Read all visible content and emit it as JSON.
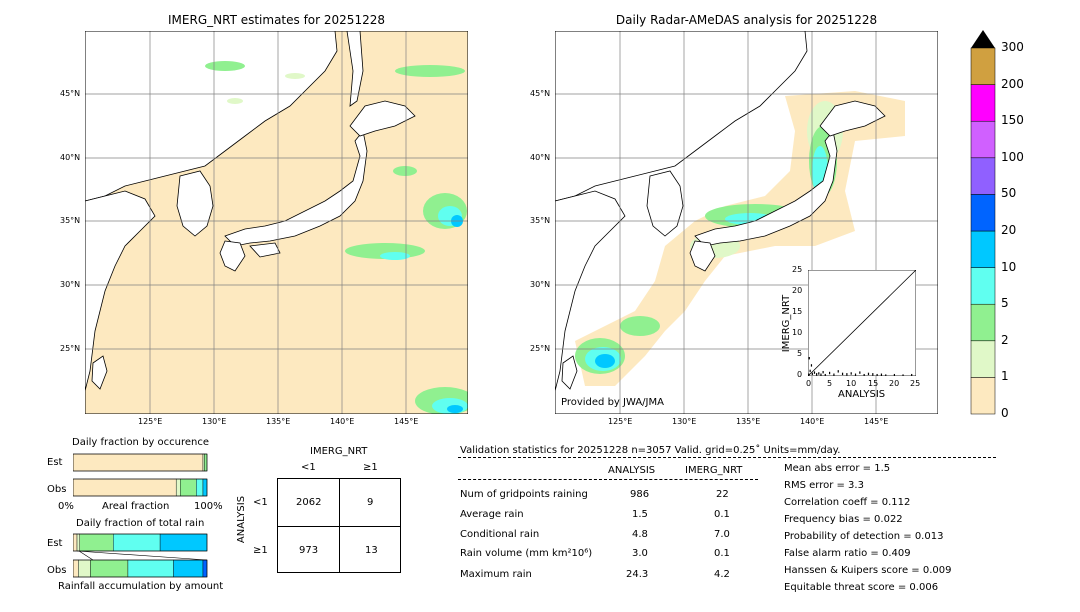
{
  "colors": {
    "land": "#ffffff",
    "sea_fill": "#fde9c0",
    "grid": "#808080",
    "legend": [
      "#fde9c0",
      "#e0f8c8",
      "#90f090",
      "#60fff0",
      "#00c8ff",
      "#0064ff",
      "#9060ff",
      "#d060ff",
      "#ff00ff",
      "#d0a040"
    ]
  },
  "maps": {
    "left_title": "IMERG_NRT estimates for 20251228",
    "right_title": "Daily Radar-AMeDAS analysis for 20251228",
    "lat_ticks": [
      "45°N",
      "40°N",
      "35°N",
      "30°N",
      "25°N"
    ],
    "lon_ticks": [
      "125°E",
      "130°E",
      "135°E",
      "140°E",
      "145°E"
    ],
    "credit": "Provided by JWA/JMA"
  },
  "colorbar": {
    "ticks": [
      "300",
      "200",
      "150",
      "100",
      "50",
      "20",
      "10",
      "5",
      "2",
      "1",
      "0"
    ]
  },
  "scatter_inset": {
    "ylabel": "IMERG_NRT",
    "xlabel": "ANALYSIS",
    "ticks": [
      "0",
      "5",
      "10",
      "15",
      "20",
      "25"
    ]
  },
  "fraction_occurrence": {
    "title": "Daily fraction by occurence",
    "row_est": "Est",
    "row_obs": "Obs",
    "axis_left": "0%",
    "axis_mid": "Areal fraction",
    "axis_right": "100%"
  },
  "fraction_rain": {
    "title": "Daily fraction of total rain",
    "row_est": "Est",
    "row_obs": "Obs",
    "axis_label": "Rainfall accumulation by amount"
  },
  "contingency": {
    "col_title": "IMERG_NRT",
    "col_lt": "<1",
    "col_ge": "≥1",
    "row_title": "ANALYSIS",
    "row_lt": "<1",
    "row_ge": "≥1",
    "cells": [
      "2062",
      "9",
      "973",
      "13"
    ]
  },
  "validation": {
    "header": "Validation statistics for 20251228  n=3057 Valid. grid=0.25˚ Units=mm/day.",
    "col_analysis": "ANALYSIS",
    "col_imerg": "IMERG_NRT",
    "rows": [
      {
        "label": "Num of gridpoints raining",
        "analysis": "986",
        "imerg": "22"
      },
      {
        "label": "Average rain",
        "analysis": "1.5",
        "imerg": "0.1"
      },
      {
        "label": "Conditional rain",
        "analysis": "4.8",
        "imerg": "7.0"
      },
      {
        "label": "Rain volume (mm km²10⁶)",
        "analysis": "3.0",
        "imerg": "0.1"
      },
      {
        "label": "Maximum rain",
        "analysis": "24.3",
        "imerg": "4.2"
      }
    ],
    "scores": [
      "Mean abs error =    1.5",
      "RMS error =    3.3",
      "Correlation coeff =  0.112",
      "Frequency bias =  0.022",
      "Probability of detection =  0.013",
      "False alarm ratio =  0.409",
      "Hanssen & Kuipers score =  0.009",
      "Equitable threat score =  0.006"
    ]
  },
  "chart_data": [
    {
      "type": "heatmap",
      "title": "IMERG_NRT estimates for 20251228",
      "xlabel": "",
      "ylabel": "",
      "x_ticks": [
        "125°E",
        "130°E",
        "135°E",
        "140°E",
        "145°E"
      ],
      "y_ticks": [
        "45°N",
        "40°N",
        "35°N",
        "30°N",
        "25°N"
      ]
    },
    {
      "type": "heatmap",
      "title": "Daily Radar-AMeDAS analysis for 20251228",
      "xlabel": "",
      "ylabel": "",
      "x_ticks": [
        "125°E",
        "130°E",
        "135°E",
        "140°E",
        "145°E"
      ],
      "y_ticks": [
        "45°N",
        "40°N",
        "35°N",
        "30°N",
        "25°N"
      ]
    },
    {
      "type": "scatter",
      "xlabel": "ANALYSIS",
      "ylabel": "IMERG_NRT",
      "xlim": [
        0,
        25
      ],
      "ylim": [
        0,
        25
      ],
      "points": [
        [
          0.2,
          0.3
        ],
        [
          0.5,
          1.2
        ],
        [
          1,
          0.5
        ],
        [
          1.5,
          0.8
        ],
        [
          2,
          0.4
        ],
        [
          2.5,
          0.6
        ],
        [
          3,
          0.3
        ],
        [
          3.5,
          0.9
        ],
        [
          4,
          0.2
        ],
        [
          5,
          0.7
        ],
        [
          6,
          0.3
        ],
        [
          7,
          1.1
        ],
        [
          8,
          0.5
        ],
        [
          9,
          0.4
        ],
        [
          10,
          0.6
        ],
        [
          11,
          0.3
        ],
        [
          12,
          0.8
        ],
        [
          13,
          0.2
        ],
        [
          14,
          0.5
        ],
        [
          15,
          0.4
        ],
        [
          16,
          0.2
        ],
        [
          17,
          0.3
        ],
        [
          18,
          0.1
        ],
        [
          20,
          0.2
        ],
        [
          22,
          0.1
        ],
        [
          24,
          0.2
        ],
        [
          0.3,
          4.2
        ],
        [
          0.8,
          2.5
        ]
      ]
    },
    {
      "type": "bar",
      "title": "Daily fraction by occurence",
      "categories": [
        "Est",
        "Obs"
      ],
      "series": [
        {
          "values": [
            0.97,
            0.77
          ]
        },
        {
          "values": [
            0.01,
            0.03
          ]
        },
        {
          "values": [
            0.02,
            0.12
          ]
        },
        {
          "values": [
            0.0,
            0.05
          ]
        },
        {
          "values": [
            0.0,
            0.03
          ]
        }
      ]
    },
    {
      "type": "bar",
      "title": "Daily fraction of total rain",
      "categories": [
        "Est",
        "Obs"
      ],
      "series": [
        {
          "values": [
            0.03,
            0.04
          ]
        },
        {
          "values": [
            0.02,
            0.09
          ]
        },
        {
          "values": [
            0.25,
            0.28
          ]
        },
        {
          "values": [
            0.35,
            0.34
          ]
        },
        {
          "values": [
            0.35,
            0.22
          ]
        },
        {
          "values": [
            0.0,
            0.03
          ]
        }
      ]
    }
  ]
}
